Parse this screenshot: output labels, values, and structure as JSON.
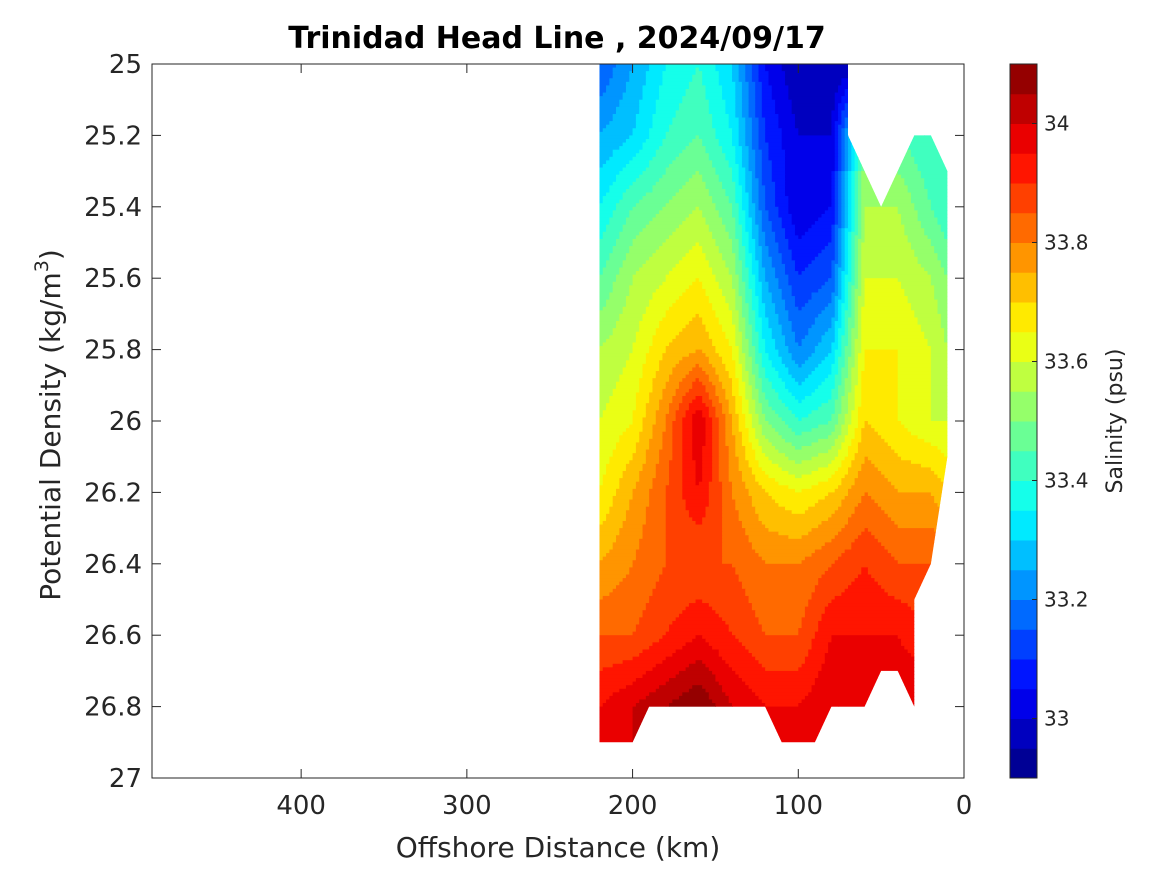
{
  "chart_data": {
    "type": "contourf",
    "title": "Trinidad Head Line , 2024/09/17",
    "xlabel": "Offshore Distance (km)",
    "ylabel_prefix": "Potential Density (kg/m",
    "ylabel_sup": "3",
    "ylabel_suffix": ")",
    "colorbar_label": "Salinity (psu)",
    "x_axis": {
      "range": [
        490,
        0
      ],
      "reversed": true,
      "ticks": [
        400,
        300,
        200,
        100,
        0
      ],
      "tick_labels": [
        "400",
        "300",
        "200",
        "100",
        "0"
      ]
    },
    "y_axis": {
      "range": [
        25,
        27
      ],
      "reversed": true,
      "ticks": [
        25,
        25.2,
        25.4,
        25.6,
        25.8,
        26,
        26.2,
        26.4,
        26.6,
        26.8,
        27
      ],
      "tick_labels": [
        "25",
        "25.2",
        "25.4",
        "25.6",
        "25.8",
        "26",
        "26.2",
        "26.4",
        "26.6",
        "26.8",
        "27"
      ]
    },
    "colorbar": {
      "range": [
        32.9,
        34.1
      ],
      "levels": [
        32.9,
        32.95,
        33.0,
        33.05,
        33.1,
        33.15,
        33.2,
        33.25,
        33.3,
        33.35,
        33.4,
        33.45,
        33.5,
        33.55,
        33.6,
        33.65,
        33.7,
        33.75,
        33.8,
        33.85,
        33.9,
        33.95,
        34.0,
        34.05,
        34.1
      ],
      "ticks": [
        33.0,
        33.2,
        33.4,
        33.6,
        33.8,
        34.0
      ],
      "tick_labels": [
        "33",
        "33.2",
        "33.4",
        "33.6",
        "33.8",
        "34"
      ],
      "colormap": "jet"
    },
    "grid": false,
    "legend": "none",
    "data_extent": {
      "x_km": [
        220,
        10
      ],
      "sigma_theta": [
        25,
        26.9
      ]
    },
    "distance_km": [
      220,
      200,
      180,
      160,
      140,
      120,
      100,
      80,
      60,
      40,
      20,
      10
    ],
    "density": [
      25.0,
      25.2,
      25.4,
      25.6,
      25.8,
      26.0,
      26.2,
      26.4,
      26.6,
      26.8,
      26.9
    ],
    "salinity": [
      [
        33.15,
        33.25,
        33.35,
        33.4,
        33.3,
        33.05,
        32.95,
        32.95,
        null,
        null,
        null,
        null
      ],
      [
        33.25,
        33.3,
        33.4,
        33.45,
        33.35,
        33.1,
        33.0,
        33.0,
        33.5,
        33.45,
        33.4,
        null
      ],
      [
        33.35,
        33.45,
        33.5,
        33.55,
        33.45,
        33.15,
        33.0,
        33.05,
        33.55,
        33.55,
        33.45,
        33.4
      ],
      [
        33.45,
        33.55,
        33.6,
        33.65,
        33.55,
        33.25,
        33.1,
        33.15,
        33.6,
        33.6,
        33.55,
        33.5
      ],
      [
        33.55,
        33.6,
        33.7,
        33.75,
        33.65,
        33.35,
        33.2,
        33.3,
        33.65,
        33.65,
        33.6,
        33.55
      ],
      [
        33.6,
        33.65,
        33.8,
        34.0,
        33.75,
        33.5,
        33.4,
        33.45,
        33.7,
        33.65,
        33.6,
        33.6
      ],
      [
        33.65,
        33.75,
        33.85,
        33.95,
        33.8,
        33.7,
        33.65,
        33.7,
        33.8,
        33.75,
        33.75,
        33.7
      ],
      [
        33.75,
        33.8,
        33.85,
        33.85,
        33.85,
        33.8,
        33.8,
        33.85,
        33.9,
        33.85,
        33.85,
        null
      ],
      [
        33.85,
        33.85,
        33.9,
        33.95,
        33.9,
        33.85,
        33.85,
        33.95,
        33.95,
        33.95,
        33.9,
        null
      ],
      [
        33.95,
        34.0,
        34.05,
        34.1,
        34.0,
        33.95,
        33.95,
        34.0,
        34.0,
        34.0,
        null,
        null
      ],
      [
        33.95,
        34.0,
        34.05,
        34.05,
        34.0,
        33.95,
        34.0,
        34.0,
        null,
        null,
        null,
        null
      ]
    ]
  }
}
